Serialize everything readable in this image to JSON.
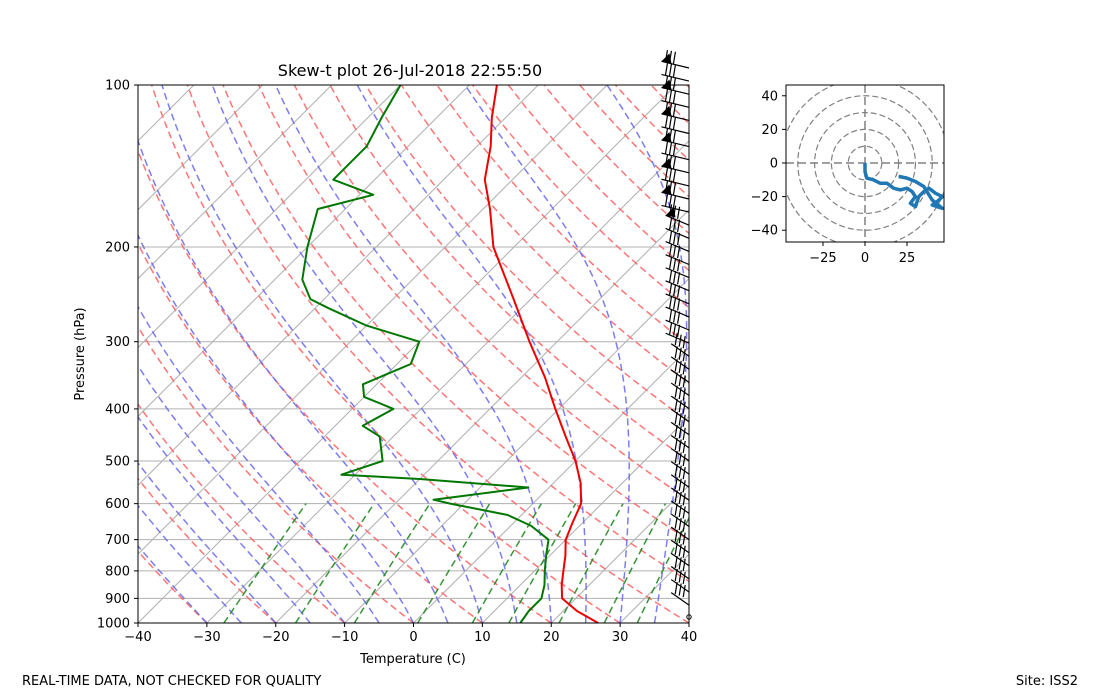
{
  "footer": {
    "left": "REAL-TIME DATA, NOT CHECKED FOR QUALITY",
    "right": "Site: ISS2"
  },
  "chart_data": [
    {
      "type": "line",
      "subtype": "skew-t log-p diagram",
      "title": "Skew-t plot 26-Jul-2018 22:55:50",
      "xlabel": "Temperature (C)",
      "ylabel": "Pressure (hPa)",
      "xlim": [
        -40,
        40
      ],
      "ylim": [
        1000,
        100
      ],
      "yscale": "log",
      "x_ticks": [
        -40,
        -30,
        -20,
        -10,
        0,
        10,
        20,
        30,
        40
      ],
      "y_ticks": [
        100,
        200,
        300,
        400,
        500,
        600,
        700,
        800,
        900,
        1000
      ],
      "skewed_isotherms": true,
      "grid": true,
      "dry_adiabats_color": "#ff6666",
      "moist_adiabats_color": "#6666ee",
      "mixing_ratio_lines_color": "#228822",
      "wind_barbs": "right edge",
      "series": [
        {
          "role": "temperature",
          "color": "#ee0000",
          "points": [
            [
              1000,
              26.8
            ],
            [
              950,
              22
            ],
            [
              900,
              18
            ],
            [
              850,
              16
            ],
            [
              800,
              14.2
            ],
            [
              750,
              12.3
            ],
            [
              700,
              10
            ],
            [
              650,
              8.5
            ],
            [
              600,
              7
            ],
            [
              550,
              4
            ],
            [
              500,
              0
            ],
            [
              450,
              -5
            ],
            [
              400,
              -10.5
            ],
            [
              350,
              -16.5
            ],
            [
              300,
              -24
            ],
            [
              250,
              -32.5
            ],
            [
              200,
              -43
            ],
            [
              170,
              -49
            ],
            [
              150,
              -54
            ],
            [
              130,
              -58
            ],
            [
              115,
              -62
            ],
            [
              100,
              -66
            ]
          ]
        },
        {
          "role": "dewpoint",
          "color": "#007700",
          "points": [
            [
              1000,
              15.5
            ],
            [
              950,
              15
            ],
            [
              900,
              15
            ],
            [
              850,
              13.5
            ],
            [
              800,
              11.5
            ],
            [
              750,
              9.5
            ],
            [
              700,
              7.5
            ],
            [
              660,
              3
            ],
            [
              630,
              -2
            ],
            [
              600,
              -12
            ],
            [
              590,
              -15
            ],
            [
              560,
              -3
            ],
            [
              540,
              -20
            ],
            [
              530,
              -32
            ],
            [
              500,
              -28
            ],
            [
              450,
              -32
            ],
            [
              430,
              -36
            ],
            [
              400,
              -34
            ],
            [
              380,
              -40
            ],
            [
              360,
              -42
            ],
            [
              330,
              -38
            ],
            [
              300,
              -40
            ],
            [
              280,
              -50
            ],
            [
              260,
              -58
            ],
            [
              250,
              -62
            ],
            [
              230,
              -66
            ],
            [
              200,
              -70
            ],
            [
              170,
              -74
            ],
            [
              160,
              -68
            ],
            [
              150,
              -76
            ],
            [
              130,
              -76
            ],
            [
              115,
              -78
            ],
            [
              100,
              -80
            ]
          ]
        }
      ]
    },
    {
      "type": "line",
      "subtype": "hodograph",
      "xlim": [
        -47,
        47
      ],
      "ylim": [
        -47,
        47
      ],
      "x_ticks": [
        -25,
        0,
        25
      ],
      "y_ticks": [
        40,
        20,
        0,
        -20,
        -40
      ],
      "range_rings": [
        10,
        20,
        30,
        40,
        50
      ],
      "color": "#1f77b4",
      "points": [
        [
          0,
          0
        ],
        [
          0,
          -5
        ],
        [
          1,
          -9
        ],
        [
          5,
          -10
        ],
        [
          9,
          -12
        ],
        [
          13,
          -12
        ],
        [
          17,
          -15
        ],
        [
          21,
          -16
        ],
        [
          25,
          -15
        ],
        [
          28,
          -17
        ],
        [
          30,
          -20
        ],
        [
          27,
          -24
        ],
        [
          30,
          -26
        ],
        [
          32,
          -20
        ],
        [
          35,
          -17
        ],
        [
          38,
          -15
        ],
        [
          42,
          -18
        ],
        [
          46,
          -20
        ],
        [
          44,
          -22
        ],
        [
          40,
          -25
        ],
        [
          46,
          -27
        ],
        [
          40,
          -22
        ],
        [
          35,
          -14
        ],
        [
          30,
          -11
        ],
        [
          25,
          -9
        ],
        [
          20,
          -8
        ]
      ]
    }
  ]
}
